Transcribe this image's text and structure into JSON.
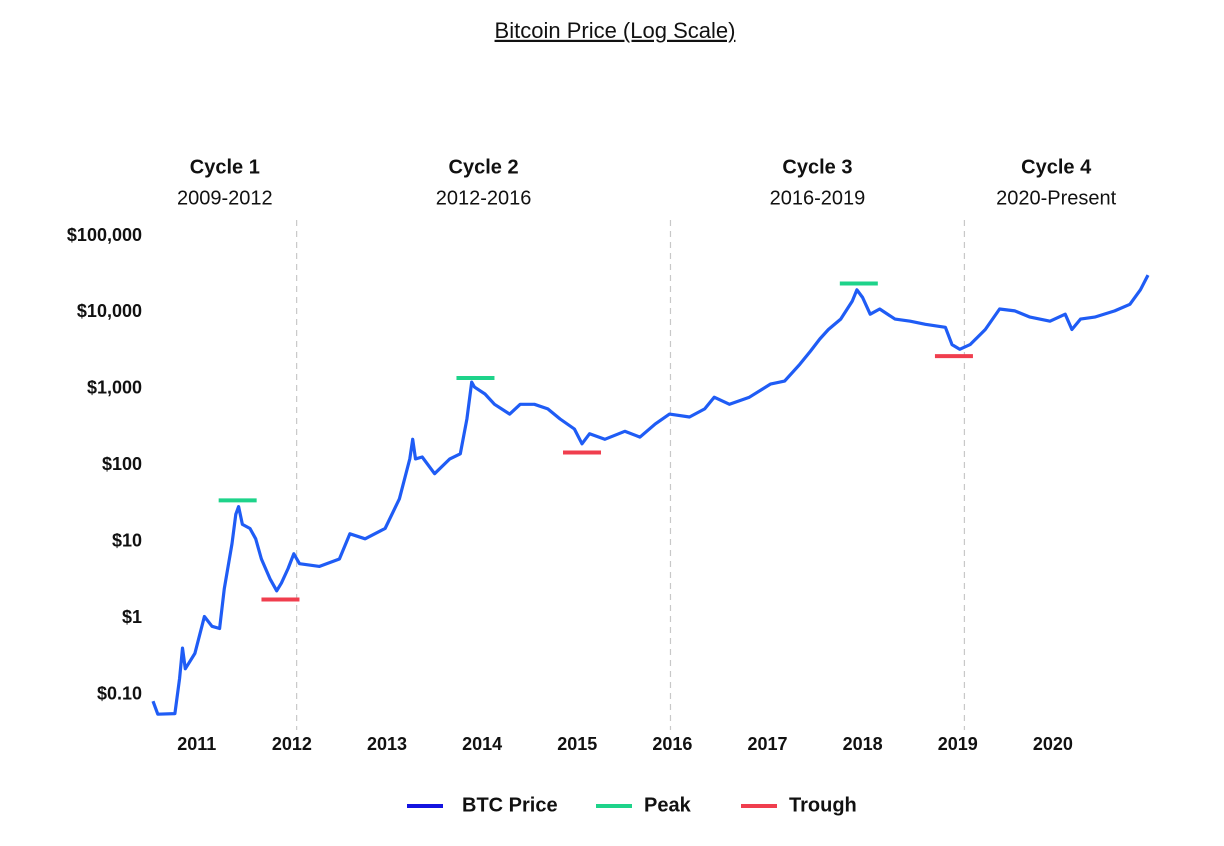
{
  "chart_data": {
    "type": "line",
    "title": "Bitcoin Price (Log Scale)",
    "yscale": "log",
    "grid": false,
    "legend": "bottom",
    "xlim": [
      2010.54,
      2021.0
    ],
    "xticks": [
      2011,
      2012,
      2013,
      2014,
      2015,
      2016,
      2017,
      2018,
      2019,
      2020
    ],
    "ylim": [
      0.05,
      100000
    ],
    "yticks": [
      {
        "value": 0.1,
        "label": "$0.10"
      },
      {
        "value": 1,
        "label": "$1"
      },
      {
        "value": 10,
        "label": "$10"
      },
      {
        "value": 100,
        "label": "$100"
      },
      {
        "value": 1000,
        "label": "$1,000"
      },
      {
        "value": 10000,
        "label": "$10,000"
      },
      {
        "value": 100000,
        "label": "$100,000"
      }
    ],
    "dividers": [
      2012.05,
      2015.98,
      2019.07
    ],
    "cycles": [
      {
        "name": "Cycle 1",
        "period": "2009-2012"
      },
      {
        "name": "Cycle 2",
        "period": "2012-2016"
      },
      {
        "name": "Cycle 3",
        "period": "2016-2019"
      },
      {
        "name": "Cycle 4",
        "period": "2020-Present"
      }
    ],
    "x": [
      2010.54,
      2010.59,
      2010.77,
      2010.82,
      2010.85,
      2010.88,
      2010.98,
      2011.08,
      2011.16,
      2011.24,
      2011.29,
      2011.37,
      2011.41,
      2011.44,
      2011.48,
      2011.56,
      2011.62,
      2011.68,
      2011.77,
      2011.84,
      2011.89,
      2011.96,
      2012.02,
      2012.08,
      2012.29,
      2012.5,
      2012.61,
      2012.77,
      2012.98,
      2013.13,
      2013.24,
      2013.27,
      2013.3,
      2013.37,
      2013.5,
      2013.66,
      2013.77,
      2013.84,
      2013.89,
      2013.92,
      2014.03,
      2014.13,
      2014.29,
      2014.4,
      2014.55,
      2014.69,
      2014.82,
      2014.97,
      2015.05,
      2015.13,
      2015.29,
      2015.5,
      2015.66,
      2015.82,
      2015.97,
      2016.18,
      2016.34,
      2016.44,
      2016.6,
      2016.81,
      2017.03,
      2017.18,
      2017.34,
      2017.45,
      2017.55,
      2017.64,
      2017.77,
      2017.89,
      2017.94,
      2018.0,
      2018.08,
      2018.18,
      2018.34,
      2018.5,
      2018.66,
      2018.87,
      2018.94,
      2019.02,
      2019.13,
      2019.29,
      2019.44,
      2019.6,
      2019.76,
      2019.97,
      2020.13,
      2020.2,
      2020.29,
      2020.44,
      2020.65,
      2020.81,
      2020.92,
      2021.0
    ],
    "series": [
      {
        "name": "BTC Price",
        "color": "#1f5cf5",
        "legend_color": "#1414e0",
        "values": [
          0.083,
          0.056,
          0.057,
          0.165,
          0.41,
          0.22,
          0.35,
          1.06,
          0.79,
          0.74,
          2.46,
          9.5,
          23,
          29,
          17,
          15,
          11,
          6,
          3.3,
          2.3,
          2.9,
          4.5,
          7,
          5.2,
          4.8,
          6,
          12.8,
          11,
          15,
          36.7,
          122,
          220,
          122,
          129,
          78,
          122,
          142,
          405,
          1230,
          1060,
          860,
          630,
          470,
          630,
          630,
          550,
          405,
          300,
          192,
          260,
          220,
          280,
          235,
          350,
          470,
          430,
          550,
          780,
          630,
          780,
          1160,
          1270,
          2100,
          3100,
          4500,
          6000,
          8200,
          14000,
          19800,
          15700,
          9500,
          11100,
          8200,
          7700,
          7000,
          6400,
          3800,
          3300,
          3800,
          6000,
          11100,
          10500,
          8700,
          7700,
          9500,
          6000,
          8200,
          8700,
          10500,
          12800,
          19800,
          30800
        ]
      }
    ],
    "markers": [
      {
        "name": "Peak",
        "color": "#1ed38a",
        "x": [
          2011.43,
          2013.93,
          2017.96
        ],
        "values": [
          35,
          1390,
          23900
        ]
      },
      {
        "name": "Trough",
        "color": "#f03e4e",
        "x": [
          2011.88,
          2015.05,
          2018.96
        ],
        "values": [
          1.77,
          148,
          2690
        ]
      }
    ]
  }
}
